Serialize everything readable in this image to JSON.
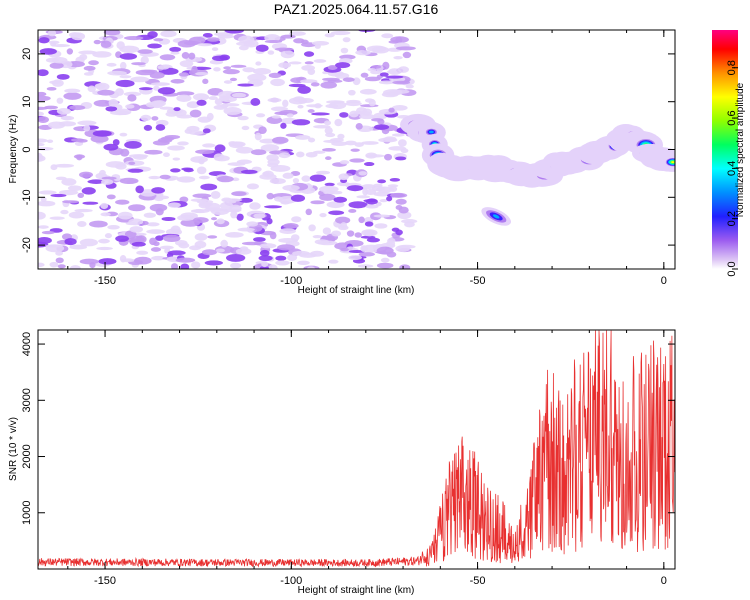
{
  "title": "PAZ1.2025.064.11.57.G16",
  "chart_data": [
    {
      "type": "heatmap",
      "xlabel": "Height of straight line (km)",
      "ylabel": "Frequency (Hz)",
      "xlim": [
        -168,
        3
      ],
      "ylim": [
        -25,
        25
      ],
      "xticks": [
        -150,
        -100,
        -50,
        0
      ],
      "yticks": [
        -20,
        -10,
        0,
        10,
        20
      ],
      "colorbar": {
        "label": "Normalized spectral amplitude",
        "range": [
          0,
          0.95
        ],
        "ticks": [
          0.0,
          0.2,
          0.4,
          0.6,
          0.8
        ]
      },
      "signal_ridge": [
        {
          "x": -66,
          "y": 5
        },
        {
          "x": -62,
          "y": 3
        },
        {
          "x": -60,
          "y": -3
        },
        {
          "x": -55,
          "y": -4
        },
        {
          "x": -48,
          "y": -3.5
        },
        {
          "x": -40,
          "y": -5
        },
        {
          "x": -33,
          "y": -5.5
        },
        {
          "x": -28,
          "y": -3
        },
        {
          "x": -20,
          "y": -1.5
        },
        {
          "x": -15,
          "y": 0
        },
        {
          "x": -10,
          "y": 3
        },
        {
          "x": -6,
          "y": 1.5
        },
        {
          "x": -3,
          "y": -1
        },
        {
          "x": 0,
          "y": -2
        },
        {
          "x": 3,
          "y": -2.5
        }
      ],
      "secondary_feature": {
        "x": -45,
        "y": -14
      },
      "noise_region_x": [
        -168,
        -68
      ]
    },
    {
      "type": "line",
      "xlabel": "Height of straight line (km)",
      "ylabel": "SNR (10 * v/v)",
      "xlim": [
        -168,
        3
      ],
      "ylim": [
        0,
        4250
      ],
      "xticks": [
        -150,
        -100,
        -50,
        0
      ],
      "yticks": [
        1000,
        2000,
        3000,
        4000
      ],
      "color": "#e83030",
      "envelope": [
        {
          "x": -168,
          "y": 130
        },
        {
          "x": -120,
          "y": 120
        },
        {
          "x": -80,
          "y": 115
        },
        {
          "x": -66,
          "y": 150
        },
        {
          "x": -62,
          "y": 400
        },
        {
          "x": -58,
          "y": 1400
        },
        {
          "x": -54,
          "y": 1800
        },
        {
          "x": -50,
          "y": 1500
        },
        {
          "x": -45,
          "y": 1100
        },
        {
          "x": -40,
          "y": 600
        },
        {
          "x": -36,
          "y": 1300
        },
        {
          "x": -32,
          "y": 2900
        },
        {
          "x": -28,
          "y": 2400
        },
        {
          "x": -22,
          "y": 3000
        },
        {
          "x": -15,
          "y": 3400
        },
        {
          "x": -8,
          "y": 2900
        },
        {
          "x": -3,
          "y": 3100
        },
        {
          "x": 3,
          "y": 3200
        }
      ]
    }
  ]
}
